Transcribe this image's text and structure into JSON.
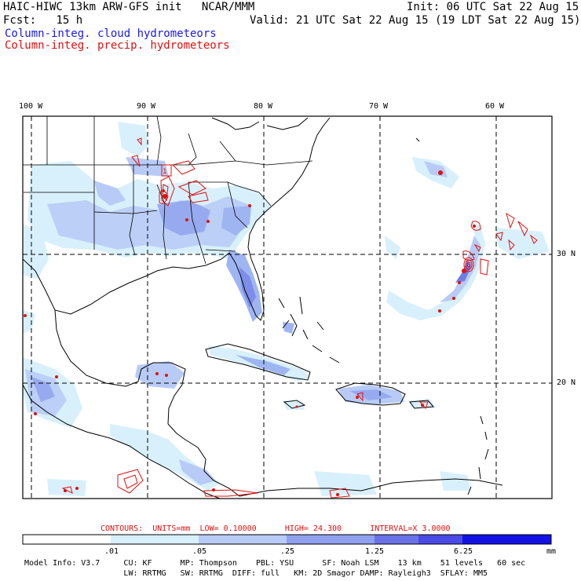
{
  "header": {
    "model_title": "HAIC-HIWC 13km ARW-GFS init",
    "org": "NCAR/MMM",
    "init_label": "Init:",
    "init_time": "06 UTC Sat 22 Aug 15",
    "fcst_label": "Fcst:",
    "fcst_value": "15 h",
    "valid": "Valid: 21 UTC Sat 22 Aug 15 (19 LDT Sat 22 Aug 15)",
    "field_cloud": "Column-integ. cloud hydrometeors",
    "field_precip": "Column-integ. precip. hydrometeors"
  },
  "map": {
    "lon_labels": [
      "100 W",
      "90 W",
      "80 W",
      "70 W",
      "60 W"
    ],
    "lat_labels": [
      "30 N",
      "20 N"
    ],
    "contour_label": "1",
    "colors": {
      "cloud_light": "#d8f0fb",
      "cloud_mid": "#9fb5f2",
      "cloud_dark": "#6f7ce6",
      "precip": "#e01010",
      "coast": "#000000"
    }
  },
  "contours": {
    "title": "CONTOURS:",
    "units": "UNITS=mm",
    "low": "LOW= 0.10000",
    "high": "HIGH= 24.300",
    "interval": "INTERVAL=X 3.0000"
  },
  "colorbar": {
    "ticks": [
      ".01",
      ".05",
      ".25",
      "1.25",
      "6.25"
    ],
    "unit": "mm",
    "colors": [
      "#ffffff",
      "#d8f0fb",
      "#b8cbf6",
      "#8fa0ee",
      "#6a72e8",
      "#3d3de6",
      "#1212e6"
    ]
  },
  "footer": {
    "line1": "Model Info: V3.7     CU: KF      MP: Thompson    PBL: YSU      SF: Noah LSM    13 km    51 levels   60 sec",
    "line2": "                     LW: RRTMG   SW: RRTMG  DIFF: full   KM: 2D Smagor DAMP: Rayleigh3  SFLAY: MM5"
  }
}
